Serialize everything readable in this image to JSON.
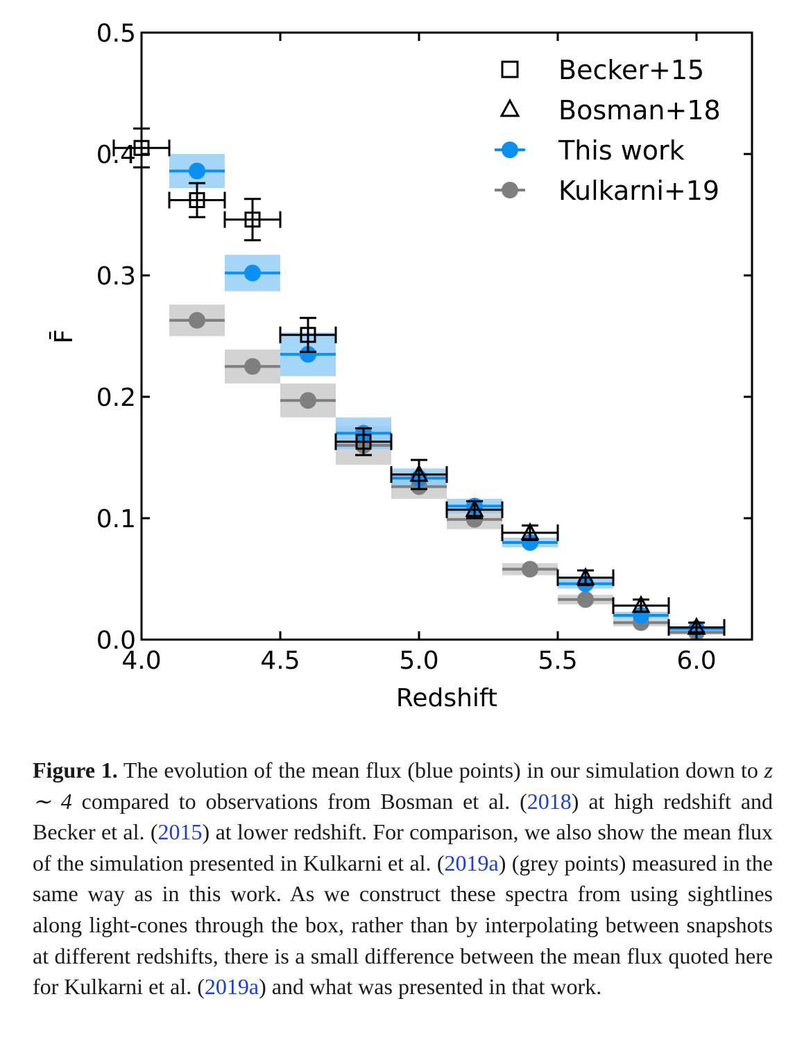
{
  "chart_data": {
    "type": "scatter",
    "xlabel": "Redshift",
    "ylabel": "F̄",
    "xlim": [
      4.0,
      6.2
    ],
    "ylim": [
      0.0,
      0.5
    ],
    "xticks": [
      "4.0",
      "4.5",
      "5.0",
      "5.5",
      "6.0"
    ],
    "yticks": [
      "0.0",
      "0.1",
      "0.2",
      "0.3",
      "0.4",
      "0.5"
    ],
    "legend_position": "top-right",
    "series": [
      {
        "name": "Becker+15",
        "marker": "square-open",
        "color": "#000000",
        "points": [
          {
            "x": 4.0,
            "y": 0.405,
            "xerr": 0.1,
            "yerr": 0.016
          },
          {
            "x": 4.2,
            "y": 0.362,
            "xerr": 0.1,
            "yerr": 0.014
          },
          {
            "x": 4.4,
            "y": 0.346,
            "xerr": 0.1,
            "yerr": 0.017
          },
          {
            "x": 4.6,
            "y": 0.251,
            "xerr": 0.1,
            "yerr": 0.014
          },
          {
            "x": 4.8,
            "y": 0.163,
            "xerr": 0.1,
            "yerr": 0.011
          }
        ]
      },
      {
        "name": "Bosman+18",
        "marker": "triangle-open",
        "color": "#000000",
        "points": [
          {
            "x": 5.0,
            "y": 0.136,
            "xerr": 0.1,
            "yerr": 0.012
          },
          {
            "x": 5.2,
            "y": 0.107,
            "xerr": 0.1,
            "yerr": 0.007
          },
          {
            "x": 5.4,
            "y": 0.088,
            "xerr": 0.1,
            "yerr": 0.006
          },
          {
            "x": 5.6,
            "y": 0.051,
            "xerr": 0.1,
            "yerr": 0.006
          },
          {
            "x": 5.8,
            "y": 0.028,
            "xerr": 0.1,
            "yerr": 0.005
          },
          {
            "x": 6.0,
            "y": 0.01,
            "xerr": 0.1,
            "yerr": 0.004
          }
        ]
      },
      {
        "name": "This work",
        "marker": "circle-filled",
        "color": "#0a8ff2",
        "band_color": "#8ecbf5",
        "points": [
          {
            "x": 4.2,
            "y": 0.386,
            "band": 0.014
          },
          {
            "x": 4.4,
            "y": 0.302,
            "band": 0.015
          },
          {
            "x": 4.6,
            "y": 0.235,
            "band": 0.018
          },
          {
            "x": 4.8,
            "y": 0.17,
            "band": 0.013
          },
          {
            "x": 5.0,
            "y": 0.133,
            "band": 0.008
          },
          {
            "x": 5.2,
            "y": 0.11,
            "band": 0.006
          },
          {
            "x": 5.4,
            "y": 0.08,
            "band": 0.004
          },
          {
            "x": 5.6,
            "y": 0.046,
            "band": 0.004
          },
          {
            "x": 5.8,
            "y": 0.02,
            "band": 0.003
          },
          {
            "x": 6.0,
            "y": 0.009,
            "band": 0.002
          }
        ]
      },
      {
        "name": "Kulkarni+19",
        "marker": "circle-filled",
        "color": "#7f7f7f",
        "band_color": "#c8c8c8",
        "points": [
          {
            "x": 4.2,
            "y": 0.263,
            "band": 0.013
          },
          {
            "x": 4.4,
            "y": 0.225,
            "band": 0.014
          },
          {
            "x": 4.6,
            "y": 0.197,
            "band": 0.014
          },
          {
            "x": 4.8,
            "y": 0.16,
            "band": 0.016
          },
          {
            "x": 5.0,
            "y": 0.126,
            "band": 0.01
          },
          {
            "x": 5.2,
            "y": 0.099,
            "band": 0.008
          },
          {
            "x": 5.4,
            "y": 0.058,
            "band": 0.005
          },
          {
            "x": 5.6,
            "y": 0.033,
            "band": 0.004
          },
          {
            "x": 5.8,
            "y": 0.014,
            "band": 0.003
          },
          {
            "x": 6.0,
            "y": 0.006,
            "band": 0.002
          }
        ]
      }
    ]
  },
  "caption": {
    "label": "Figure 1.",
    "t1": " The evolution of the mean flux (blue points) in our simulation down to ",
    "math": "z ∼ 4",
    "t2": " compared to observations from Bosman et al. (",
    "cite1": "2018",
    "t3": ") at high redshift and Becker et al. (",
    "cite2": "2015",
    "t4": ") at lower redshift. For comparison, we also show the mean flux of the simulation presented in Kulkarni et al. (",
    "cite3": "2019a",
    "t5": ") (grey points) measured in the same way as in this work. As we construct these spectra from using sightlines along light-cones through the box, rather than by interpolating between snapshots at different redshifts, there is a small difference between the mean flux quoted here for Kulkarni et al. (",
    "cite4": "2019a",
    "t6": ") and what was presented in that work."
  }
}
